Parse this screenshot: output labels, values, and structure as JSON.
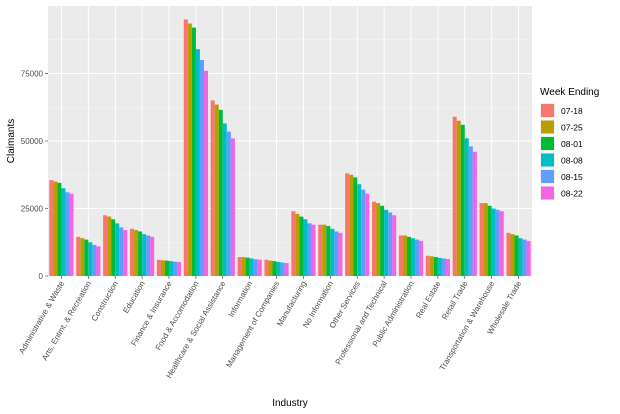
{
  "chart_data": {
    "type": "bar",
    "xlabel": "Industry",
    "ylabel": "Claimants",
    "ylim": [
      0,
      100000
    ],
    "y_ticks": [
      0,
      25000,
      50000,
      75000
    ],
    "grid": true,
    "legend": {
      "title": "Week Ending",
      "placement": "right"
    },
    "categories": [
      "Administrative & Waste",
      "Arts, Entmt, & Recreation",
      "Construction",
      "Education",
      "Finance & Insurance",
      "Food & Accomodation",
      "Healthcare & Social Assistance",
      "Information",
      "Management of Companies",
      "Manufacturing",
      "No Information",
      "Other Services",
      "Professional and Technical",
      "Public Administration",
      "Real Estate",
      "Retail Trade",
      "Transportation & Warehouse",
      "Wholesale Trade"
    ],
    "series": [
      {
        "name": "07-18",
        "color": "#F8766D",
        "values": [
          35500,
          14500,
          22500,
          17500,
          6000,
          95000,
          65000,
          7000,
          6000,
          24000,
          19000,
          38000,
          27500,
          15000,
          7500,
          59000,
          27000,
          16000
        ]
      },
      {
        "name": "07-25",
        "color": "#B79F00",
        "values": [
          35000,
          14000,
          22000,
          17000,
          5800,
          93500,
          63500,
          7000,
          5700,
          23000,
          19000,
          37500,
          27000,
          15000,
          7300,
          57500,
          27000,
          15500
        ]
      },
      {
        "name": "08-01",
        "color": "#00BA38",
        "values": [
          34500,
          13500,
          21000,
          16500,
          5700,
          92000,
          61500,
          6800,
          5500,
          22000,
          18500,
          36500,
          26000,
          14500,
          7000,
          56000,
          26000,
          15000
        ]
      },
      {
        "name": "08-08",
        "color": "#00BFC4",
        "values": [
          32500,
          12500,
          19500,
          15500,
          5500,
          84000,
          56500,
          6500,
          5200,
          21000,
          17500,
          34000,
          24500,
          14000,
          6700,
          51000,
          25000,
          14000
        ]
      },
      {
        "name": "08-15",
        "color": "#619CFF",
        "values": [
          31000,
          11500,
          18000,
          15000,
          5300,
          80000,
          53500,
          6200,
          5000,
          19500,
          16500,
          32000,
          23500,
          13500,
          6500,
          48000,
          24500,
          13500
        ]
      },
      {
        "name": "08-22",
        "color": "#F564E3",
        "values": [
          30500,
          11000,
          17000,
          14500,
          5200,
          76000,
          51000,
          6000,
          4800,
          19000,
          16000,
          30500,
          22500,
          13000,
          6300,
          46000,
          24000,
          13000
        ]
      }
    ]
  }
}
